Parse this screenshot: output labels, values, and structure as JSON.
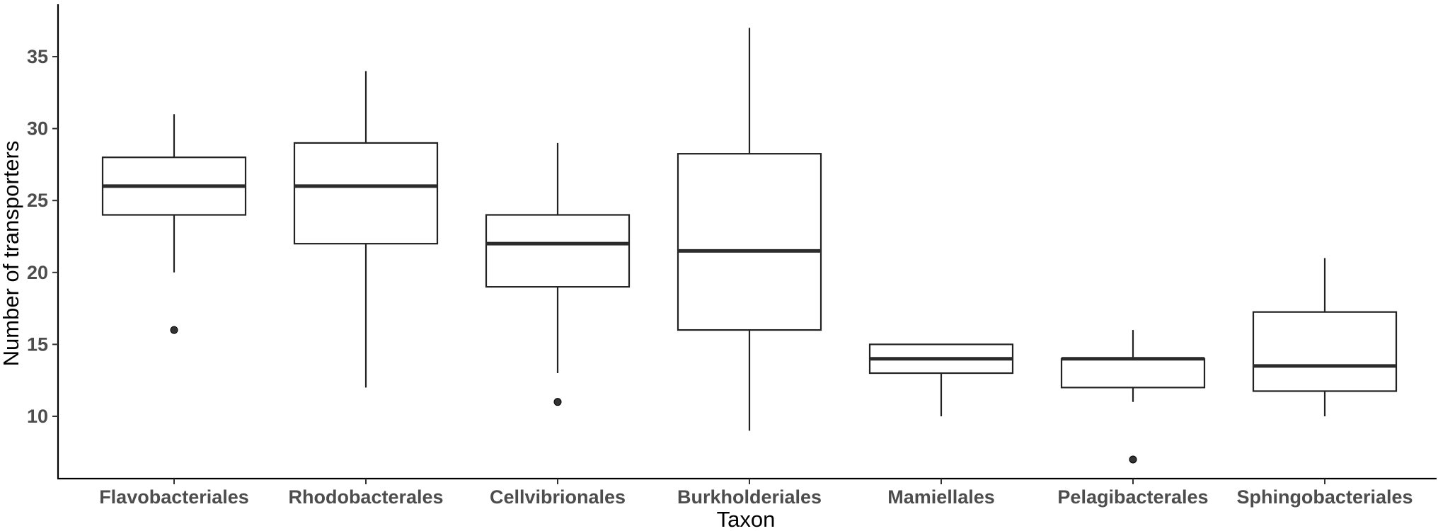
{
  "chart_data": {
    "type": "boxplot",
    "xlabel": "Taxon",
    "ylabel": "Number of transporters",
    "ylim": [
      5,
      38
    ],
    "yticks": [
      10,
      15,
      20,
      25,
      30,
      35
    ],
    "grid": false,
    "legend": "none",
    "colors": {
      "box_fill": "#ffffff",
      "box_stroke": "#222222",
      "outlier": "#333333",
      "axis": "#000000",
      "tick_label": "#4d4d4d"
    },
    "categories": [
      "Flavobacteriales",
      "Rhodobacterales",
      "Cellvibrionales",
      "Burkholderiales",
      "Mamiellales",
      "Pelagibacterales",
      "Sphingobacteriales"
    ],
    "boxes": [
      {
        "category": "Flavobacteriales",
        "min": 20,
        "q1": 24,
        "median": 26,
        "q3": 28,
        "max": 31,
        "outliers": [
          16
        ]
      },
      {
        "category": "Rhodobacterales",
        "min": 12,
        "q1": 22,
        "median": 26,
        "q3": 29,
        "max": 34,
        "outliers": []
      },
      {
        "category": "Cellvibrionales",
        "min": 13,
        "q1": 19,
        "median": 22,
        "q3": 24,
        "max": 29,
        "outliers": [
          11
        ]
      },
      {
        "category": "Burkholderiales",
        "min": 9,
        "q1": 16,
        "median": 21.5,
        "q3": 28.25,
        "max": 37,
        "outliers": []
      },
      {
        "category": "Mamiellales",
        "min": 10,
        "q1": 13,
        "median": 14,
        "q3": 15,
        "max": 15,
        "outliers": []
      },
      {
        "category": "Pelagibacterales",
        "min": 11,
        "q1": 12,
        "median": 14,
        "q3": 14,
        "max": 16,
        "outliers": [
          7
        ]
      },
      {
        "category": "Sphingobacteriales",
        "min": 10,
        "q1": 11.75,
        "median": 13.5,
        "q3": 17.25,
        "max": 21,
        "outliers": []
      }
    ]
  }
}
